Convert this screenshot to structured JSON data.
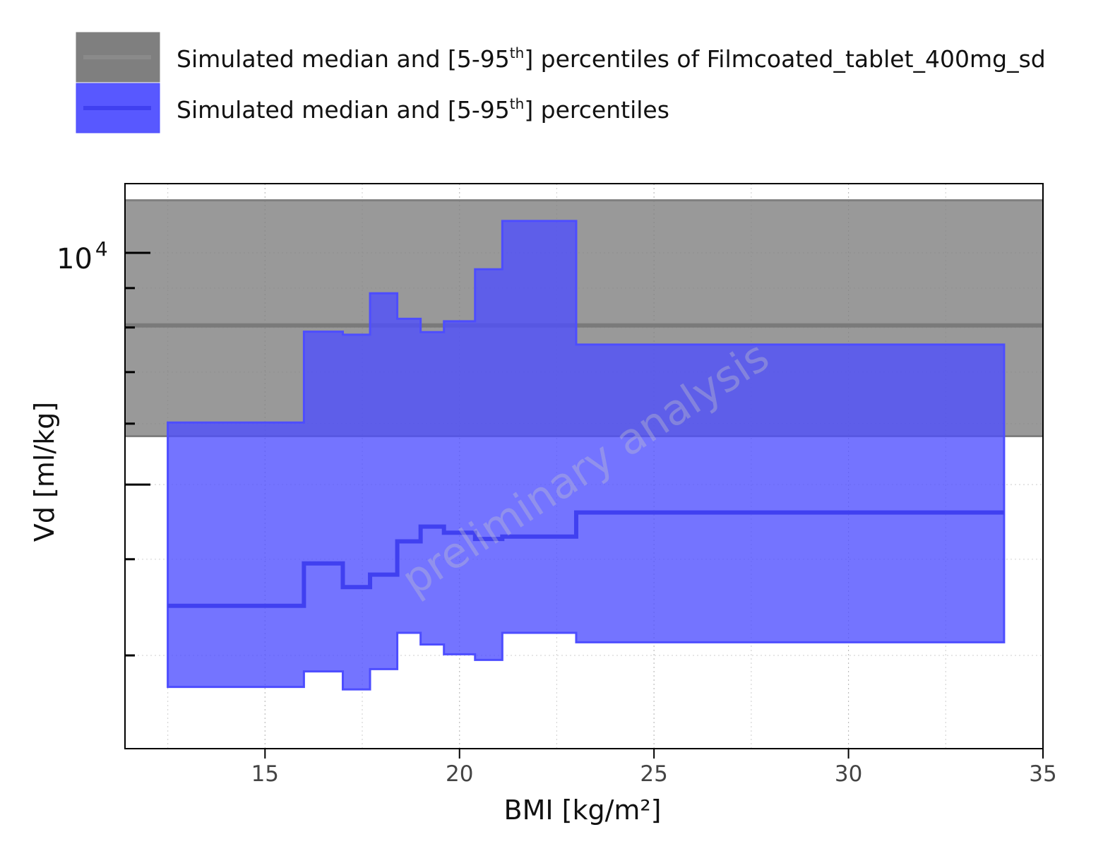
{
  "chart_data": {
    "type": "area",
    "title": "",
    "xlabel": "BMI [kg/m²]",
    "ylabel": "Vd [ml/kg]",
    "xlim": [
      11.4,
      35
    ],
    "ylim": [
      2270,
      12300
    ],
    "yscale": "log",
    "grid": true,
    "legend_position": "top-left",
    "watermark": "preliminary analysis",
    "x_ticks": [
      15,
      20,
      25,
      30,
      35
    ],
    "y_major_ticks": [
      {
        "value": 10000,
        "base": "10",
        "exponent": "4"
      }
    ],
    "y_minor_ticks": [
      3000,
      4000,
      5000,
      6000,
      7000,
      8000,
      9000
    ],
    "legend": [
      {
        "label": "Simulated median and [5-95",
        "sup": "th",
        "label_end": "] percentiles of Filmcoated_tablet_400mg_sd",
        "color": "#7f7f7f"
      },
      {
        "label": "Simulated median and [5-95",
        "sup": "th",
        "label_end": "] percentiles",
        "color": "#4d4dff"
      }
    ],
    "reference_band": {
      "name": "Filmcoated_tablet_400mg_sd",
      "median": 8050,
      "p5": 5780,
      "p95": 11700,
      "color": "#7f7f7f"
    },
    "bins": {
      "name": "Simulated median and [5-95th] percentiles",
      "color": "#4d4dff",
      "edges": [
        12.5,
        16.0,
        17.0,
        17.7,
        18.4,
        19.0,
        19.6,
        20.4,
        21.1,
        23.0,
        34.0
      ],
      "median": [
        3480,
        3950,
        3680,
        3820,
        4220,
        4410,
        4330,
        4250,
        4280,
        4600
      ],
      "p5": [
        2730,
        2860,
        2710,
        2880,
        3210,
        3100,
        3010,
        2960,
        3210,
        3120
      ],
      "p95": [
        6020,
        7900,
        7830,
        8860,
        8210,
        7890,
        8150,
        9520,
        11000,
        7600
      ]
    }
  }
}
